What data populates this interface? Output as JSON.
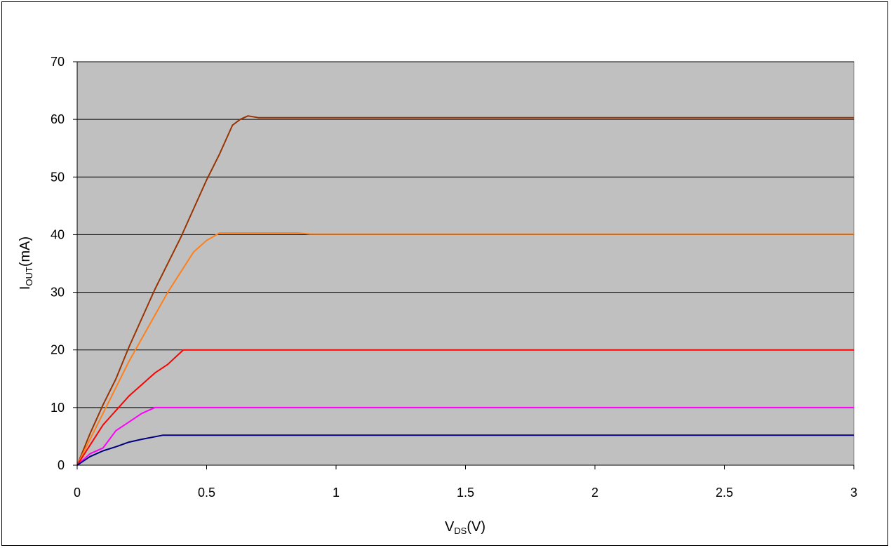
{
  "chart_data": {
    "type": "line",
    "title": "",
    "xlabel_main": "V",
    "xlabel_sub": "DS",
    "xlabel_unit": "(V)",
    "ylabel_main": "I",
    "ylabel_sub": "OUT",
    "ylabel_unit": "(mA)",
    "xlim": [
      0,
      3
    ],
    "ylim": [
      0,
      70
    ],
    "x_ticks": [
      0,
      0.5,
      1,
      1.5,
      2,
      2.5,
      3
    ],
    "x_tick_labels": [
      "0",
      "0.5",
      "1",
      "1.5",
      "2",
      "2.5",
      "3"
    ],
    "y_ticks": [
      0,
      10,
      20,
      30,
      40,
      50,
      60,
      70
    ],
    "y_tick_labels": [
      "0",
      "10",
      "20",
      "30",
      "40",
      "50",
      "60",
      "70"
    ],
    "grid": "horizontal",
    "legend": "none",
    "plot_background": "#c0c0c0",
    "series": [
      {
        "color": "#993300",
        "points": [
          [
            0,
            0
          ],
          [
            0.05,
            5.5
          ],
          [
            0.1,
            10.5
          ],
          [
            0.15,
            15.0
          ],
          [
            0.2,
            20.5
          ],
          [
            0.3,
            30.5
          ],
          [
            0.4,
            39.5
          ],
          [
            0.45,
            44.5
          ],
          [
            0.5,
            49.5
          ],
          [
            0.55,
            54.0
          ],
          [
            0.6,
            59.0
          ],
          [
            0.63,
            60.0
          ],
          [
            0.66,
            60.6
          ],
          [
            0.7,
            60.3
          ],
          [
            1,
            60.3
          ],
          [
            3,
            60.3
          ]
        ]
      },
      {
        "color": "#ff7f1a",
        "points": [
          [
            0,
            0
          ],
          [
            0.05,
            4.5
          ],
          [
            0.1,
            9.0
          ],
          [
            0.2,
            18.0
          ],
          [
            0.3,
            26.0
          ],
          [
            0.35,
            30.0
          ],
          [
            0.4,
            33.5
          ],
          [
            0.45,
            37.0
          ],
          [
            0.5,
            39.0
          ],
          [
            0.55,
            40.3
          ],
          [
            0.85,
            40.3
          ],
          [
            0.9,
            40.1
          ],
          [
            3,
            40.1
          ]
        ]
      },
      {
        "color": "#ff0000",
        "points": [
          [
            0,
            0
          ],
          [
            0.05,
            3.5
          ],
          [
            0.1,
            7.0
          ],
          [
            0.15,
            9.5
          ],
          [
            0.2,
            12.0
          ],
          [
            0.25,
            14.0
          ],
          [
            0.3,
            16.0
          ],
          [
            0.35,
            17.5
          ],
          [
            0.41,
            20.0
          ],
          [
            1,
            20.0
          ],
          [
            3,
            20.0
          ]
        ]
      },
      {
        "color": "#ff00ff",
        "points": [
          [
            0,
            0
          ],
          [
            0.05,
            2.0
          ],
          [
            0.1,
            3.0
          ],
          [
            0.15,
            6.0
          ],
          [
            0.2,
            7.5
          ],
          [
            0.25,
            9.0
          ],
          [
            0.3,
            10.0
          ],
          [
            1,
            10.0
          ],
          [
            3,
            10.0
          ]
        ]
      },
      {
        "color": "#000080",
        "points": [
          [
            0,
            0
          ],
          [
            0.05,
            1.5
          ],
          [
            0.1,
            2.5
          ],
          [
            0.15,
            3.2
          ],
          [
            0.2,
            4.0
          ],
          [
            0.25,
            4.5
          ],
          [
            0.33,
            5.2
          ],
          [
            1,
            5.2
          ],
          [
            3,
            5.2
          ]
        ]
      }
    ]
  }
}
